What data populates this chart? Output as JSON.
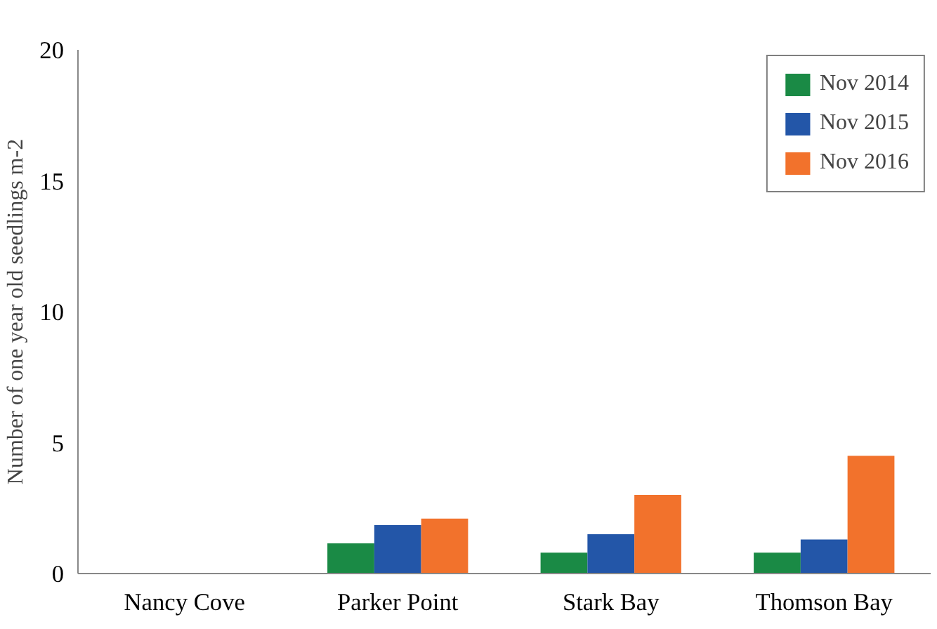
{
  "chart_data": {
    "type": "bar",
    "ylabel": "Number of one year old seedlings m-2",
    "categories": [
      "Nancy Cove",
      "Parker Point",
      "Stark Bay",
      "Thomson Bay"
    ],
    "series": [
      {
        "name": "Nov 2014",
        "color": "#1a8a45",
        "values": [
          0,
          1.15,
          0.8,
          0.8
        ]
      },
      {
        "name": "Nov 2015",
        "color": "#2356a8",
        "values": [
          0,
          1.85,
          1.5,
          1.3
        ]
      },
      {
        "name": "Nov 2016",
        "color": "#f2722c",
        "values": [
          0,
          2.1,
          3.0,
          4.5
        ]
      }
    ],
    "ylim": [
      0,
      20
    ],
    "yticks": [
      0,
      5,
      10,
      15,
      20
    ],
    "grid": false,
    "legend": "top right"
  }
}
